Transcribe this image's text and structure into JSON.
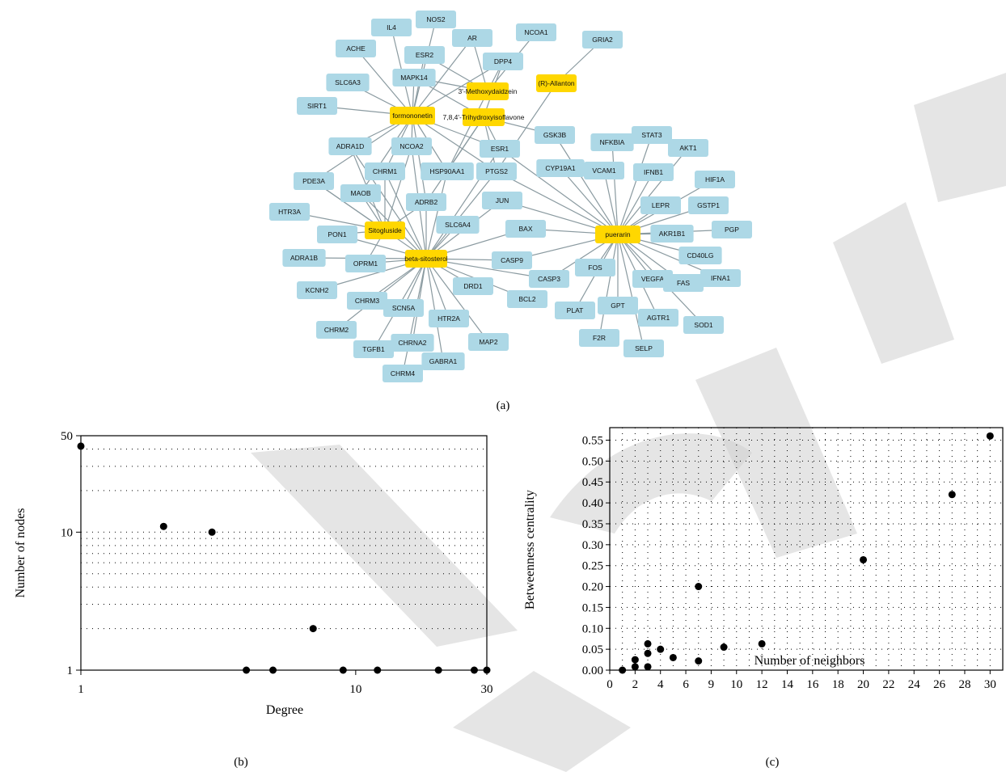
{
  "captions": {
    "a": "(a)",
    "b": "(b)",
    "c": "(c)"
  },
  "colors": {
    "herb": "#ffd700",
    "target": "#add8e6",
    "edge": "#8a9aa0",
    "marker": "#000000"
  },
  "network": {
    "herbs": [
      {
        "id": "formononetin",
        "label": "formononetin"
      },
      {
        "id": "methoxy",
        "label": "3'-Methoxydaidzein"
      },
      {
        "id": "trihydroxy",
        "label": "7,8,4'-Trihydroxyisoflavone"
      },
      {
        "id": "allanton",
        "label": "(R)-Allanton"
      },
      {
        "id": "sitogluside",
        "label": "Sitogluside"
      },
      {
        "id": "sitosterol",
        "label": "beta-sitosterol"
      },
      {
        "id": "puerarin",
        "label": "puerarin"
      }
    ],
    "targets": [
      "IL4",
      "NOS2",
      "NCOA1",
      "GRIA2",
      "ACHE",
      "AR",
      "ESR2",
      "DPP4",
      "SLC6A3",
      "MAPK14",
      "SIRT1",
      "GSK3B",
      "NFKBIA",
      "STAT3",
      "AKT1",
      "ADRA1D",
      "NCOA2",
      "ESR1",
      "CYP19A1",
      "VCAM1",
      "IFNB1",
      "HIF1A",
      "PDE3A",
      "CHRM1",
      "HSP90AA1",
      "PTGS2",
      "MAOB",
      "JUN",
      "LEPR",
      "GSTP1",
      "HTR3A",
      "ADRB2",
      "SLC6A4",
      "BAX",
      "AKR1B1",
      "PGP",
      "PON1",
      "ADRA1B",
      "OPRM1",
      "CASP9",
      "CD40LG",
      "FOS",
      "KCNH2",
      "CASP3",
      "DRD1",
      "VEGFA",
      "FAS",
      "IFNA1",
      "CHRM3",
      "SCN5A",
      "BCL2",
      "PLAT",
      "GPT",
      "CHRM2",
      "HTR2A",
      "AGTR1",
      "SOD1",
      "TGFB1",
      "CHRNA2",
      "MAP2",
      "F2R",
      "SELP",
      "GABRA1",
      "CHRM4"
    ]
  },
  "chart_data": [
    {
      "type": "scatter",
      "xlabel": "Degree",
      "ylabel": "Number of nodes",
      "xscale": "log",
      "yscale": "log",
      "xlim": [
        1,
        30
      ],
      "ylim": [
        1,
        50
      ],
      "xticks": [
        1,
        10,
        30
      ],
      "yticks": [
        1,
        10,
        50
      ],
      "grid": true,
      "x": [
        1,
        2,
        3,
        4,
        5,
        7,
        9,
        12,
        20,
        27,
        30
      ],
      "y": [
        42,
        11,
        10,
        1,
        1,
        2,
        1,
        1,
        1,
        1,
        1
      ]
    },
    {
      "type": "scatter",
      "xlabel": "Number of neighbors",
      "ylabel": "Betweenness centrality",
      "xlim": [
        0,
        31
      ],
      "ylim": [
        0,
        0.58
      ],
      "xtick_labels": [
        "0",
        "2",
        "4",
        "6",
        "9",
        "10",
        "12",
        "14",
        "16",
        "18",
        "20",
        "22",
        "24",
        "26",
        "28",
        "30"
      ],
      "ytick_labels": [
        "0.00",
        "0.05",
        "0.10",
        "0.15",
        "0.20",
        "0.25",
        "0.30",
        "0.35",
        "0.40",
        "0.45",
        "0.50",
        "0.55"
      ],
      "grid": true,
      "x": [
        1,
        2,
        2,
        3,
        3,
        3,
        4,
        5,
        7,
        7,
        9,
        12,
        20,
        27,
        30
      ],
      "y": [
        0.0,
        0.008,
        0.025,
        0.008,
        0.04,
        0.063,
        0.05,
        0.03,
        0.022,
        0.2,
        0.055,
        0.063,
        0.264,
        0.42,
        0.56
      ]
    }
  ]
}
